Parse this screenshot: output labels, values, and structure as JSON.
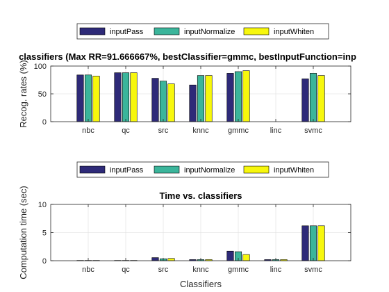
{
  "chart_data": [
    {
      "type": "bar",
      "title": "classifiers (Max RR=91.666667%, bestClassifier=gmmc, bestInputFunction=inp",
      "xlabel": "",
      "ylabel": "Recog. rates (%)",
      "ylim": [
        0,
        100
      ],
      "yticks": [
        "0",
        "50",
        "100"
      ],
      "grid": true,
      "legend": "top-center",
      "categories": [
        "nbc",
        "qc",
        "src",
        "knnc",
        "gmmc",
        "linc",
        "svmc"
      ],
      "series": [
        {
          "name": "inputPass",
          "color": "#2e2a78",
          "values": [
            84,
            88,
            78,
            66,
            87,
            0,
            77
          ]
        },
        {
          "name": "inputNormalize",
          "color": "#3bb59b",
          "values": [
            84,
            88,
            73,
            83,
            90,
            0,
            87
          ]
        },
        {
          "name": "inputWhiten",
          "color": "#f7f70d",
          "values": [
            82,
            88,
            68,
            83,
            91.666667,
            0,
            83
          ]
        }
      ]
    },
    {
      "type": "bar",
      "title": "Time vs. classifiers",
      "xlabel": "Classifiers",
      "ylabel": "Computation time (sec)",
      "ylim": [
        0,
        10
      ],
      "yticks": [
        "0",
        "5",
        "10"
      ],
      "grid": true,
      "legend": "top-center",
      "categories": [
        "nbc",
        "qc",
        "src",
        "knnc",
        "gmmc",
        "linc",
        "svmc"
      ],
      "series": [
        {
          "name": "inputPass",
          "color": "#2e2a78",
          "values": [
            0.05,
            0.05,
            0.55,
            0.2,
            1.7,
            0.2,
            6.2
          ]
        },
        {
          "name": "inputNormalize",
          "color": "#3bb59b",
          "values": [
            0.05,
            0.05,
            0.35,
            0.2,
            1.6,
            0.2,
            6.2
          ]
        },
        {
          "name": "inputWhiten",
          "color": "#f7f70d",
          "values": [
            0.05,
            0.05,
            0.4,
            0.2,
            1.1,
            0.2,
            6.2
          ]
        }
      ]
    }
  ]
}
